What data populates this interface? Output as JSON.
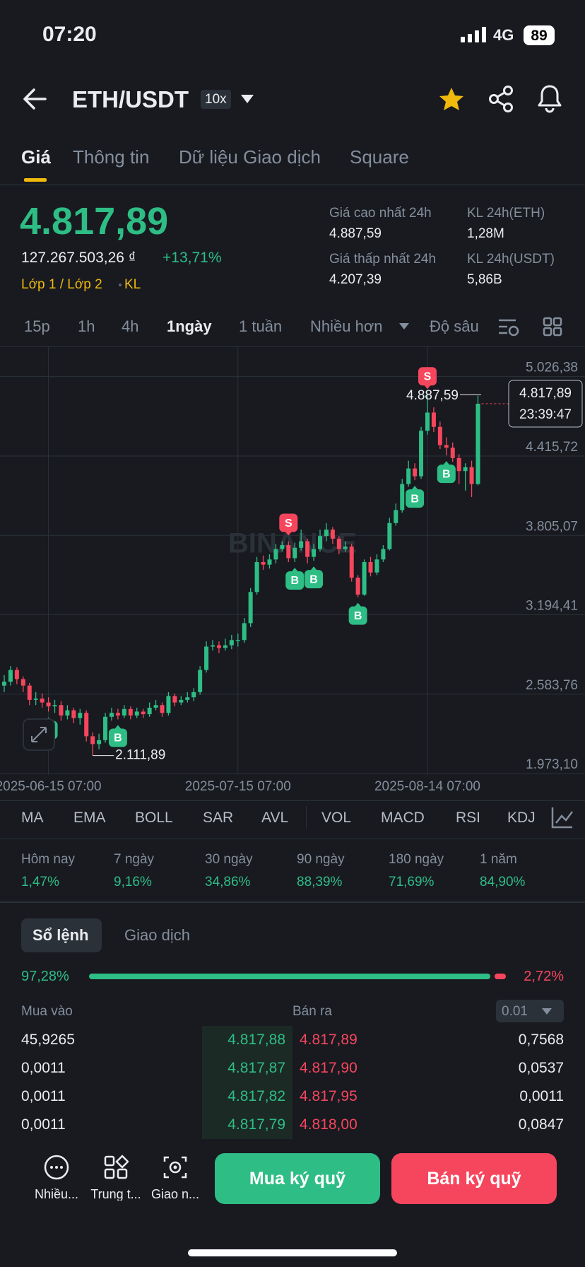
{
  "status_bar": {
    "time": "07:20",
    "network": "4G",
    "battery": "89"
  },
  "header": {
    "pair": "ETH/USDT",
    "leverage": "10x"
  },
  "tabs": [
    "Giá",
    "Thông tin",
    "Dữ liệu Giao dịch",
    "Square"
  ],
  "price": {
    "last": "4.817,89",
    "fiat": "127.267.503,26 ₫",
    "change": "+13,71%",
    "layer": "Lớp 1 / Lớp 2",
    "tag": "KL"
  },
  "stats": [
    {
      "label": "Giá cao nhất 24h",
      "value": "4.887,59"
    },
    {
      "label": "KL 24h(ETH)",
      "value": "1,28M"
    },
    {
      "label": "Giá thấp nhất 24h",
      "value": "4.207,39"
    },
    {
      "label": "KL 24h(USDT)",
      "value": "5,86B"
    }
  ],
  "intervals": [
    "15p",
    "1h",
    "4h",
    "1ngày",
    "1 tuần",
    "Nhiều hơn",
    "Độ sâu"
  ],
  "chart_data": {
    "type": "candlestick",
    "watermark": "BINANCE",
    "open": [
      2650,
      2680,
      2770,
      2700,
      2650,
      2540,
      2550,
      2520,
      2490,
      2500,
      2420,
      2460,
      2400,
      2440,
      2260,
      2200,
      2230,
      2410,
      2440,
      2420,
      2470,
      2420,
      2450,
      2430,
      2480,
      2500,
      2440,
      2570,
      2520,
      2540,
      2560,
      2600,
      2770,
      2950,
      2960,
      2940,
      2960,
      3000,
      3000,
      3130,
      3370,
      3600,
      3580,
      3620,
      3700,
      3730,
      3630,
      3710,
      3760,
      3640,
      3700,
      3800,
      3850,
      3780,
      3700,
      3720,
      3480,
      3350,
      3600,
      3520,
      3620,
      3700,
      3900,
      4000,
      4200,
      4320,
      4260,
      4610,
      4750,
      4640,
      4500,
      4480,
      4400,
      4300,
      4330,
      4200
    ],
    "high": [
      2730,
      2800,
      2790,
      2720,
      2670,
      2600,
      2590,
      2560,
      2540,
      2530,
      2500,
      2480,
      2470,
      2460,
      2290,
      2280,
      2440,
      2480,
      2470,
      2500,
      2490,
      2480,
      2470,
      2520,
      2540,
      2520,
      2600,
      2590,
      2570,
      2600,
      2630,
      2800,
      2990,
      3000,
      2990,
      3010,
      3040,
      3050,
      3170,
      3400,
      3640,
      3650,
      3660,
      3740,
      3760,
      3760,
      3750,
      3850,
      3780,
      3740,
      3850,
      3900,
      3870,
      3800,
      3760,
      3740,
      3500,
      3620,
      3640,
      3660,
      3730,
      3940,
      4050,
      4240,
      4380,
      4360,
      4640,
      4887.59,
      4790,
      4680,
      4560,
      4520,
      4430,
      4360,
      4380,
      4880
    ],
    "low": [
      2600,
      2650,
      2660,
      2600,
      2500,
      2500,
      2480,
      2450,
      2440,
      2380,
      2390,
      2360,
      2350,
      2220,
      2111.89,
      2160,
      2210,
      2380,
      2390,
      2400,
      2390,
      2400,
      2400,
      2410,
      2460,
      2410,
      2420,
      2490,
      2500,
      2520,
      2530,
      2580,
      2750,
      2920,
      2900,
      2920,
      2930,
      2950,
      2980,
      3100,
      3350,
      3540,
      3550,
      3590,
      3680,
      3600,
      3600,
      3690,
      3590,
      3610,
      3680,
      3760,
      3740,
      3660,
      3680,
      3450,
      3330,
      3340,
      3490,
      3500,
      3600,
      3690,
      3880,
      3980,
      4180,
      4230,
      4240,
      4580,
      4600,
      4470,
      4420,
      4370,
      4200,
      4150,
      4100,
      4190
    ],
    "close": [
      2680,
      2770,
      2700,
      2650,
      2540,
      2550,
      2520,
      2490,
      2500,
      2420,
      2460,
      2400,
      2440,
      2260,
      2200,
      2230,
      2410,
      2440,
      2420,
      2470,
      2420,
      2450,
      2430,
      2480,
      2500,
      2440,
      2570,
      2520,
      2540,
      2560,
      2600,
      2770,
      2950,
      2960,
      2940,
      2960,
      3000,
      3000,
      3130,
      3370,
      3600,
      3580,
      3620,
      3700,
      3730,
      3630,
      3710,
      3760,
      3640,
      3700,
      3800,
      3850,
      3780,
      3700,
      3720,
      3480,
      3350,
      3600,
      3520,
      3620,
      3700,
      3900,
      4000,
      4200,
      4320,
      4260,
      4610,
      4750,
      4640,
      4500,
      4480,
      4400,
      4300,
      4330,
      4200,
      4817.89
    ],
    "up_color": "#2ebd85",
    "down_color": "#f6465d",
    "ylim": [
      1963,
      5253
    ],
    "yticks": [
      {
        "value": 5026.38,
        "label": "5.026,38"
      },
      {
        "value": 4415.72,
        "label": "4.415,72"
      },
      {
        "value": 3805.07,
        "label": "3.805,07"
      },
      {
        "value": 3194.41,
        "label": "3.194,41"
      },
      {
        "value": 2583.76,
        "label": "2.583,76"
      },
      {
        "value": 1973.1,
        "label": "1.973,10"
      }
    ],
    "xticks": [
      {
        "value": 7,
        "label": "2025-06-15 07:00"
      },
      {
        "value": 37,
        "label": "2025-07-15 07:00"
      },
      {
        "value": 67,
        "label": "2025-08-14 07:00"
      }
    ],
    "grid": true,
    "last_price": {
      "value": 4817.89,
      "label": "4.817,89"
    },
    "countdown": "23:39:47",
    "high_label": {
      "candle": 67,
      "label": "4.887,59"
    },
    "low_label": {
      "candle": 14,
      "label": "2.111,89"
    },
    "trades": [
      {
        "candle": 7,
        "side": "B"
      },
      {
        "candle": 18,
        "side": "B"
      },
      {
        "candle": 45,
        "side": "S"
      },
      {
        "candle": 46,
        "side": "B"
      },
      {
        "candle": 49,
        "side": "B"
      },
      {
        "candle": 56,
        "side": "B"
      },
      {
        "candle": 65,
        "side": "B"
      },
      {
        "candle": 67,
        "side": "S"
      },
      {
        "candle": 70,
        "side": "B"
      }
    ]
  },
  "indicators": [
    "MA",
    "EMA",
    "BOLL",
    "SAR",
    "AVL",
    "VOL",
    "MACD",
    "RSI",
    "KDJ"
  ],
  "performance": [
    {
      "label": "Hôm nay",
      "value": "1,47%"
    },
    {
      "label": "7 ngày",
      "value": "9,16%"
    },
    {
      "label": "30 ngày",
      "value": "34,86%"
    },
    {
      "label": "90 ngày",
      "value": "88,39%"
    },
    {
      "label": "180 ngày",
      "value": "71,69%"
    },
    {
      "label": "1 năm",
      "value": "84,90%"
    }
  ],
  "order_book": {
    "tabs": [
      "Sổ lệnh",
      "Giao dịch"
    ],
    "buy_ratio": {
      "value": 97.28,
      "label": "97,28%"
    },
    "sell_ratio": {
      "value": 2.72,
      "label": "2,72%"
    },
    "bid_header": "Mua vào",
    "ask_header": "Bán ra",
    "precision": "0.01",
    "rows": [
      [
        "45,9265",
        "4.817,88",
        "4.817,89",
        "0,7568"
      ],
      [
        "0,0011",
        "4.817,87",
        "4.817,90",
        "0,0537"
      ],
      [
        "0,0011",
        "4.817,82",
        "4.817,95",
        "0,0011"
      ],
      [
        "0,0011",
        "4.817,79",
        "4.818,00",
        "0,0847"
      ]
    ]
  },
  "bottom_bar": {
    "items": [
      "Nhiều...",
      "Trung t...",
      "Giao n..."
    ],
    "buy": "Mua ký quỹ",
    "sell": "Bán ký quỹ"
  }
}
